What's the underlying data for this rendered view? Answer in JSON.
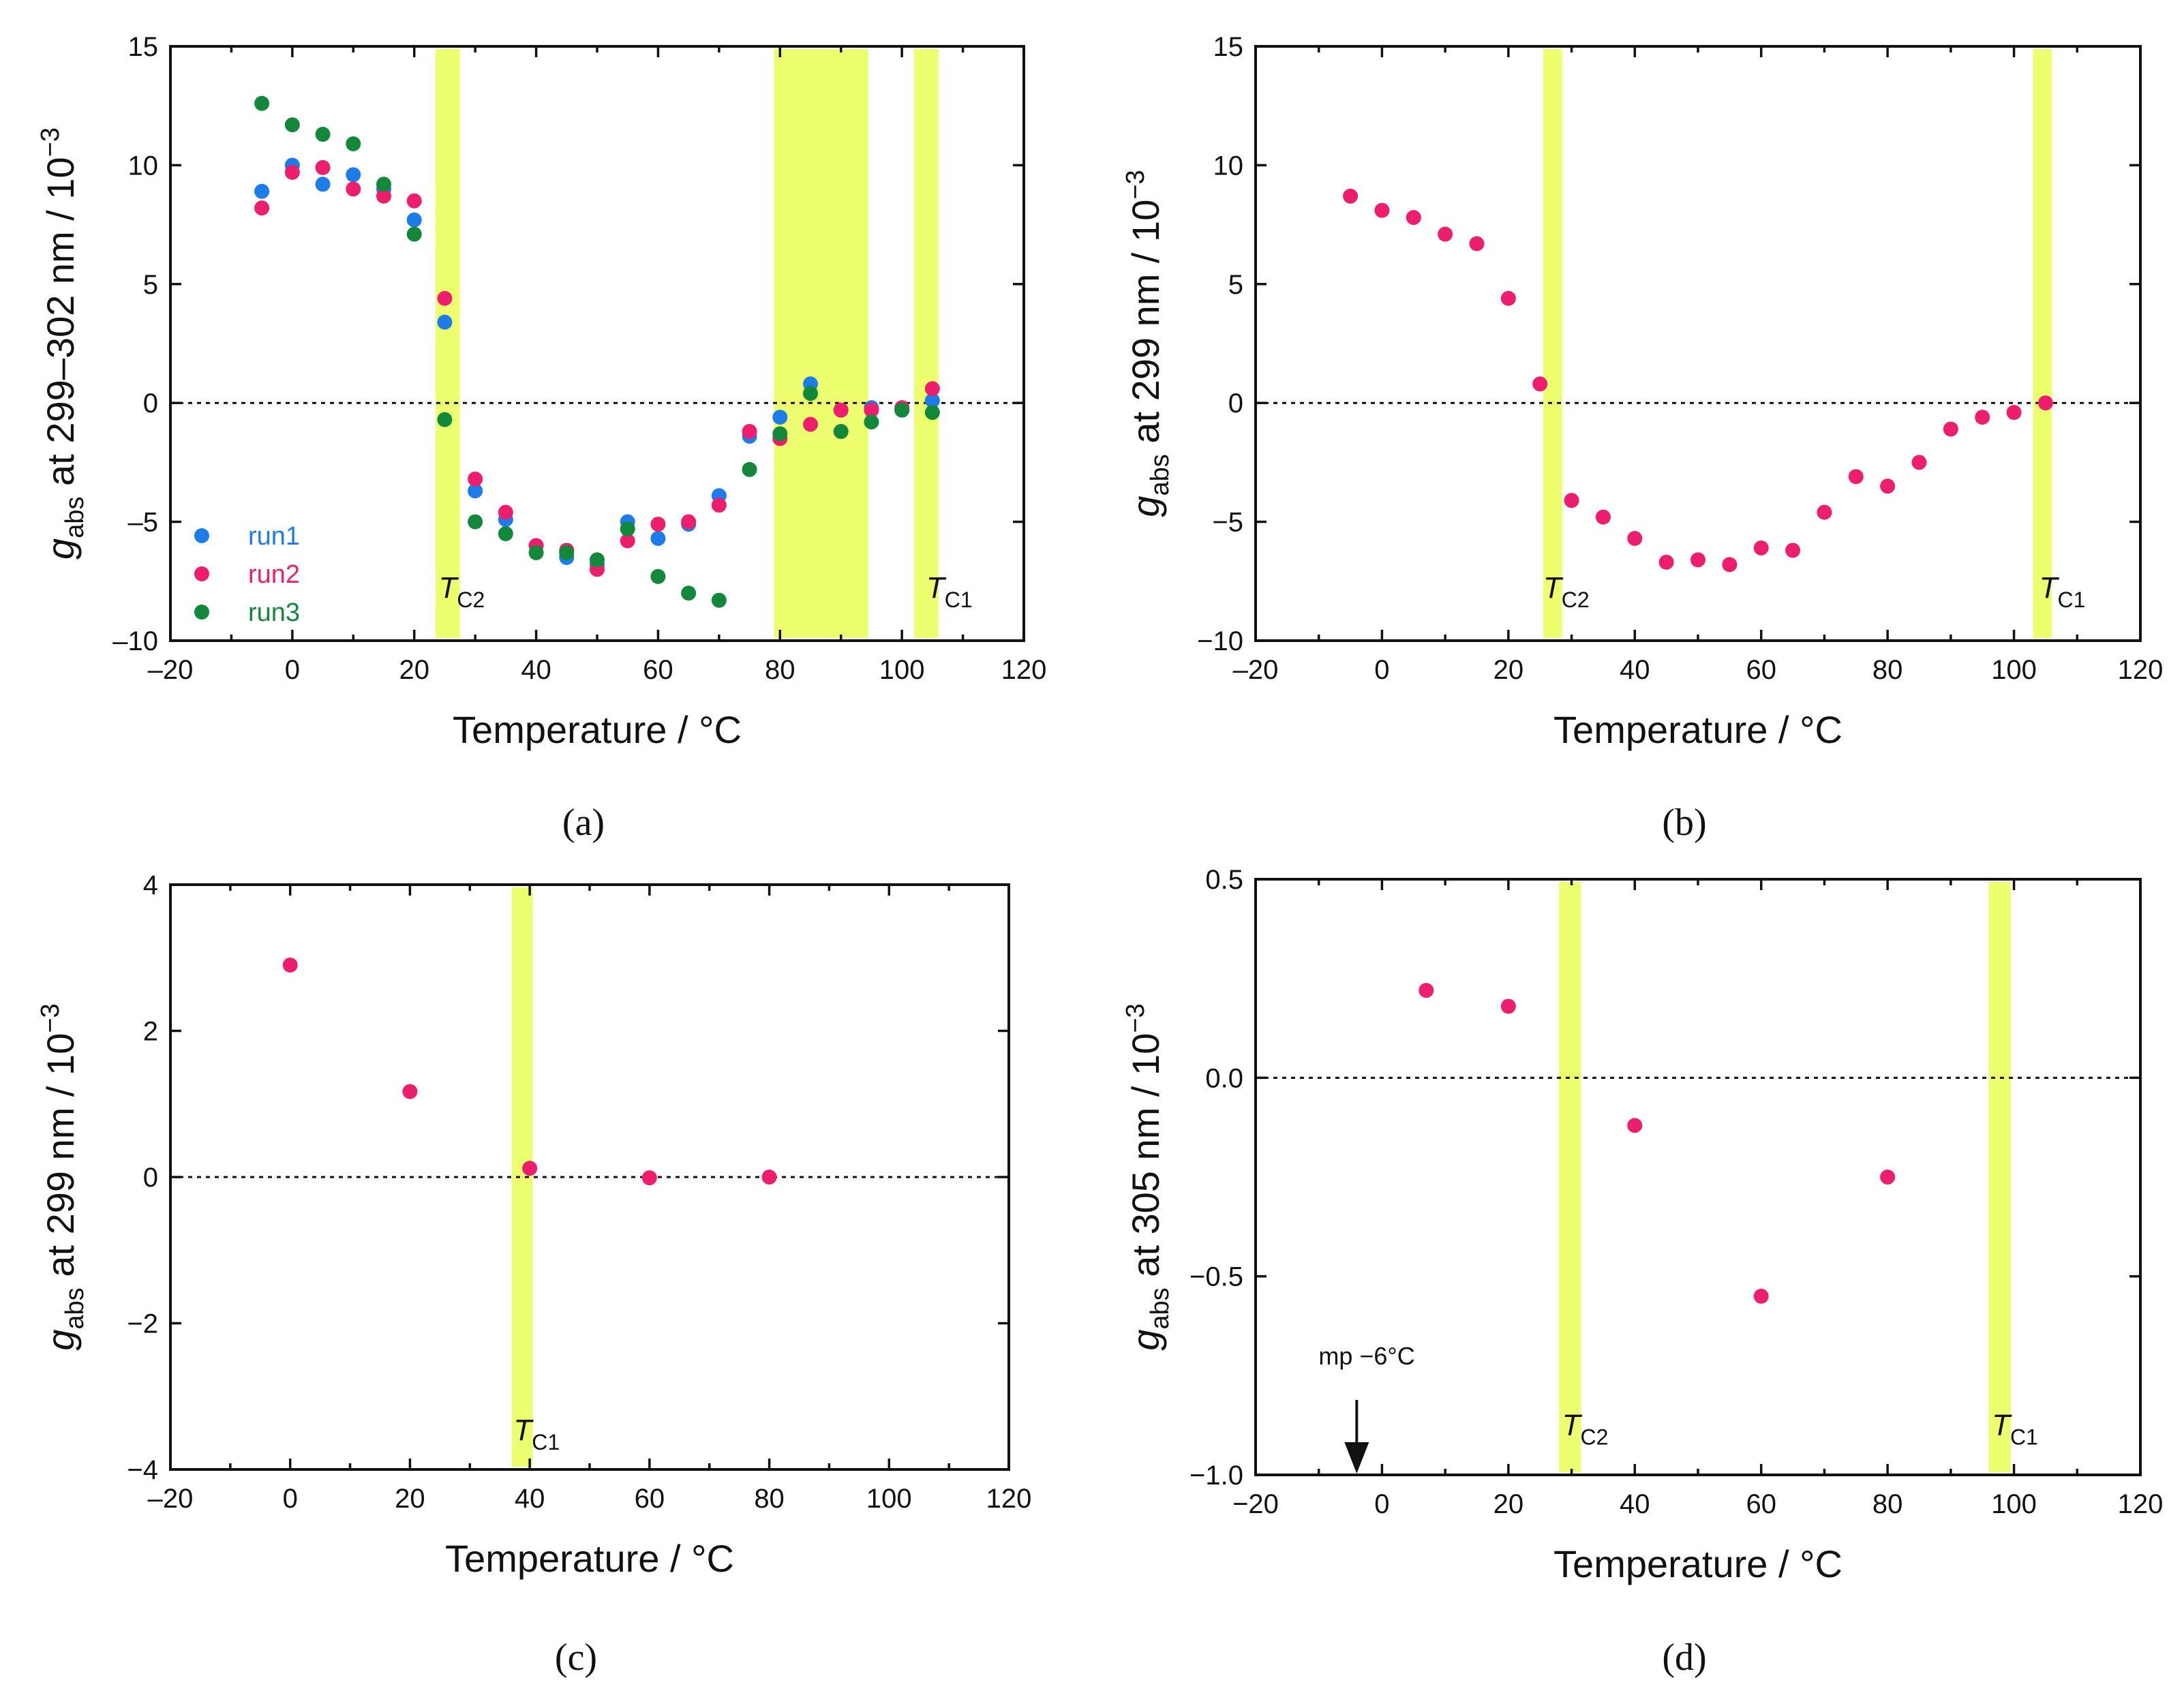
{
  "colors": {
    "band": "#EDFF6E",
    "run1": "#1E7BEA",
    "run2": "#EE1E6E",
    "run3": "#12893A",
    "axis": "#111111"
  },
  "chart_data": [
    {
      "id": "a",
      "type": "scatter",
      "panel_label": "(a)",
      "xlabel": "Temperature / °C",
      "ylabel_parts": [
        "g",
        "abs",
        " at 299–302 nm / 10",
        "−3"
      ],
      "xlim": [
        -20,
        120
      ],
      "ylim": [
        -10,
        15
      ],
      "x_ticks": [
        -20,
        0,
        20,
        40,
        60,
        80,
        100,
        120
      ],
      "x_tick_labels": [
        "–20",
        "0",
        "20",
        "40",
        "60",
        "80",
        "100",
        "120"
      ],
      "y_ticks": [
        -10,
        -5,
        0,
        5,
        10,
        15
      ],
      "y_tick_labels": [
        "–10",
        "–5",
        "0",
        "5",
        "10",
        "15"
      ],
      "reference_line": 0,
      "bands": [
        {
          "x0": 23.5,
          "x1": 27.5,
          "label": [
            "T",
            "C2"
          ],
          "label_x": 24,
          "label_y": -8.2
        },
        {
          "x0": 79,
          "x1": 94.5,
          "label": null
        },
        {
          "x0": 102,
          "x1": 106,
          "label": [
            "T",
            "C1"
          ],
          "label_x": 104,
          "label_y": -8.2
        }
      ],
      "legend": {
        "position": "bottom-left",
        "entries": [
          "run1",
          "run2",
          "run3"
        ]
      },
      "series": [
        {
          "name": "run1",
          "color_key": "run1",
          "x": [
            -5,
            0,
            5,
            10,
            15,
            20,
            25,
            30,
            35,
            40,
            45,
            50,
            55,
            60,
            65,
            70,
            75,
            80,
            85,
            90,
            95,
            100,
            105
          ],
          "y": [
            8.9,
            10.0,
            9.2,
            9.6,
            9.0,
            7.7,
            3.4,
            -3.7,
            -4.9,
            -6.0,
            -6.5,
            -6.8,
            -5.0,
            -5.7,
            -5.1,
            -3.9,
            -1.4,
            -0.6,
            0.8,
            -0.3,
            -0.2,
            -0.3,
            0.1
          ]
        },
        {
          "name": "run2",
          "color_key": "run2",
          "x": [
            -5,
            0,
            5,
            10,
            15,
            20,
            25,
            30,
            35,
            40,
            45,
            50,
            55,
            60,
            65,
            70,
            75,
            80,
            85,
            90,
            95,
            100,
            105
          ],
          "y": [
            8.2,
            9.7,
            9.9,
            9.0,
            8.7,
            8.5,
            4.4,
            -3.2,
            -4.6,
            -6.0,
            -6.2,
            -7.0,
            -5.8,
            -5.1,
            -5.0,
            -4.3,
            -1.2,
            -1.5,
            -0.9,
            -0.3,
            -0.3,
            -0.2,
            0.6
          ]
        },
        {
          "name": "run3",
          "color_key": "run3",
          "x": [
            -5,
            0,
            5,
            10,
            15,
            20,
            25,
            30,
            35,
            40,
            45,
            50,
            55,
            60,
            65,
            70,
            75,
            80,
            85,
            90,
            95,
            100,
            105
          ],
          "y": [
            12.6,
            11.7,
            11.3,
            10.9,
            9.2,
            7.1,
            -0.7,
            -5.0,
            -5.5,
            -6.3,
            -6.3,
            -6.6,
            -5.3,
            -7.3,
            -8.0,
            -8.3,
            -2.8,
            -1.3,
            0.4,
            -1.2,
            -0.8,
            -0.3,
            -0.4
          ]
        }
      ]
    },
    {
      "id": "b",
      "type": "scatter",
      "panel_label": "(b)",
      "xlabel": "Temperature / °C",
      "ylabel_parts": [
        "g",
        "abs",
        " at 299 nm / 10",
        "−3"
      ],
      "xlim": [
        -20,
        120
      ],
      "ylim": [
        -10,
        15
      ],
      "x_ticks": [
        -20,
        0,
        20,
        40,
        60,
        80,
        100,
        120
      ],
      "x_tick_labels": [
        "–20",
        "0",
        "20",
        "40",
        "60",
        "80",
        "100",
        "120"
      ],
      "y_ticks": [
        -10,
        -5,
        0,
        5,
        10,
        15
      ],
      "y_tick_labels": [
        "−10",
        "−5",
        "0",
        "5",
        "10",
        "15"
      ],
      "reference_line": 0,
      "bands": [
        {
          "x0": 25.5,
          "x1": 28.5,
          "label": [
            "T",
            "C2"
          ],
          "label_x": 25.5,
          "label_y": -8.2
        },
        {
          "x0": 103,
          "x1": 106,
          "label": [
            "T",
            "C1"
          ],
          "label_x": 104,
          "label_y": -8.2
        }
      ],
      "legend": null,
      "series": [
        {
          "name": "run2",
          "color_key": "run2",
          "x": [
            -5,
            0,
            5,
            10,
            15,
            20,
            25,
            30,
            35,
            40,
            45,
            50,
            55,
            60,
            65,
            70,
            75,
            80,
            85,
            90,
            95,
            100,
            105
          ],
          "y": [
            8.7,
            8.1,
            7.8,
            7.1,
            6.7,
            4.4,
            0.8,
            -4.1,
            -4.8,
            -5.7,
            -6.7,
            -6.6,
            -6.8,
            -6.1,
            -6.2,
            -4.6,
            -3.1,
            -3.5,
            -2.5,
            -1.1,
            -0.6,
            -0.4,
            0.0
          ]
        }
      ]
    },
    {
      "id": "c",
      "type": "scatter",
      "panel_label": "(c)",
      "xlabel": "Temperature / °C",
      "ylabel_parts": [
        "g",
        "abs",
        " at 299 nm / 10",
        "−3"
      ],
      "xlim": [
        -20,
        120
      ],
      "ylim": [
        -4,
        4
      ],
      "x_ticks": [
        -20,
        0,
        20,
        40,
        60,
        80,
        100,
        120
      ],
      "x_tick_labels": [
        "–20",
        "0",
        "20",
        "40",
        "60",
        "80",
        "100",
        "120"
      ],
      "y_ticks": [
        -4,
        -2,
        0,
        2,
        4
      ],
      "y_tick_labels": [
        "−4",
        "−2",
        "0",
        "2",
        "4"
      ],
      "reference_line": 0,
      "bands": [
        {
          "x0": 37,
          "x1": 40.5,
          "label": [
            "T",
            "C1"
          ],
          "label_x": 37.3,
          "label_y": -3.6
        }
      ],
      "legend": null,
      "series": [
        {
          "name": "run2",
          "color_key": "run2",
          "x": [
            0,
            20,
            40,
            60,
            80
          ],
          "y": [
            2.9,
            1.17,
            0.12,
            -0.01,
            0.0
          ]
        }
      ]
    },
    {
      "id": "d",
      "type": "scatter",
      "panel_label": "(d)",
      "xlabel": "Temperature / °C",
      "ylabel_parts": [
        "g",
        "abs",
        " at 305 nm / 10",
        "−3"
      ],
      "xlim": [
        -20,
        120
      ],
      "ylim": [
        -1.0,
        0.5
      ],
      "x_ticks": [
        -20,
        0,
        20,
        40,
        60,
        80,
        100,
        120
      ],
      "x_tick_labels": [
        "−20",
        "0",
        "20",
        "40",
        "60",
        "80",
        "100",
        "120"
      ],
      "y_ticks": [
        -1.0,
        -0.5,
        0.0,
        0.5
      ],
      "y_tick_labels": [
        "−1.0",
        "−0.5",
        "0.0",
        "0.5"
      ],
      "reference_line": 0,
      "bands": [
        {
          "x0": 28,
          "x1": 31.5,
          "label": [
            "T",
            "C2"
          ],
          "label_x": 28.5,
          "label_y": -0.9
        },
        {
          "x0": 96,
          "x1": 99.5,
          "label": [
            "T",
            "C1"
          ],
          "label_x": 96.5,
          "label_y": -0.9
        }
      ],
      "annotation": {
        "text": "mp −6°C",
        "x": -4,
        "y": -1.0
      },
      "legend": null,
      "series": [
        {
          "name": "run2",
          "color_key": "run2",
          "x": [
            7,
            20,
            40,
            60,
            80
          ],
          "y": [
            0.22,
            0.18,
            -0.12,
            -0.55,
            -0.25
          ]
        }
      ]
    }
  ]
}
